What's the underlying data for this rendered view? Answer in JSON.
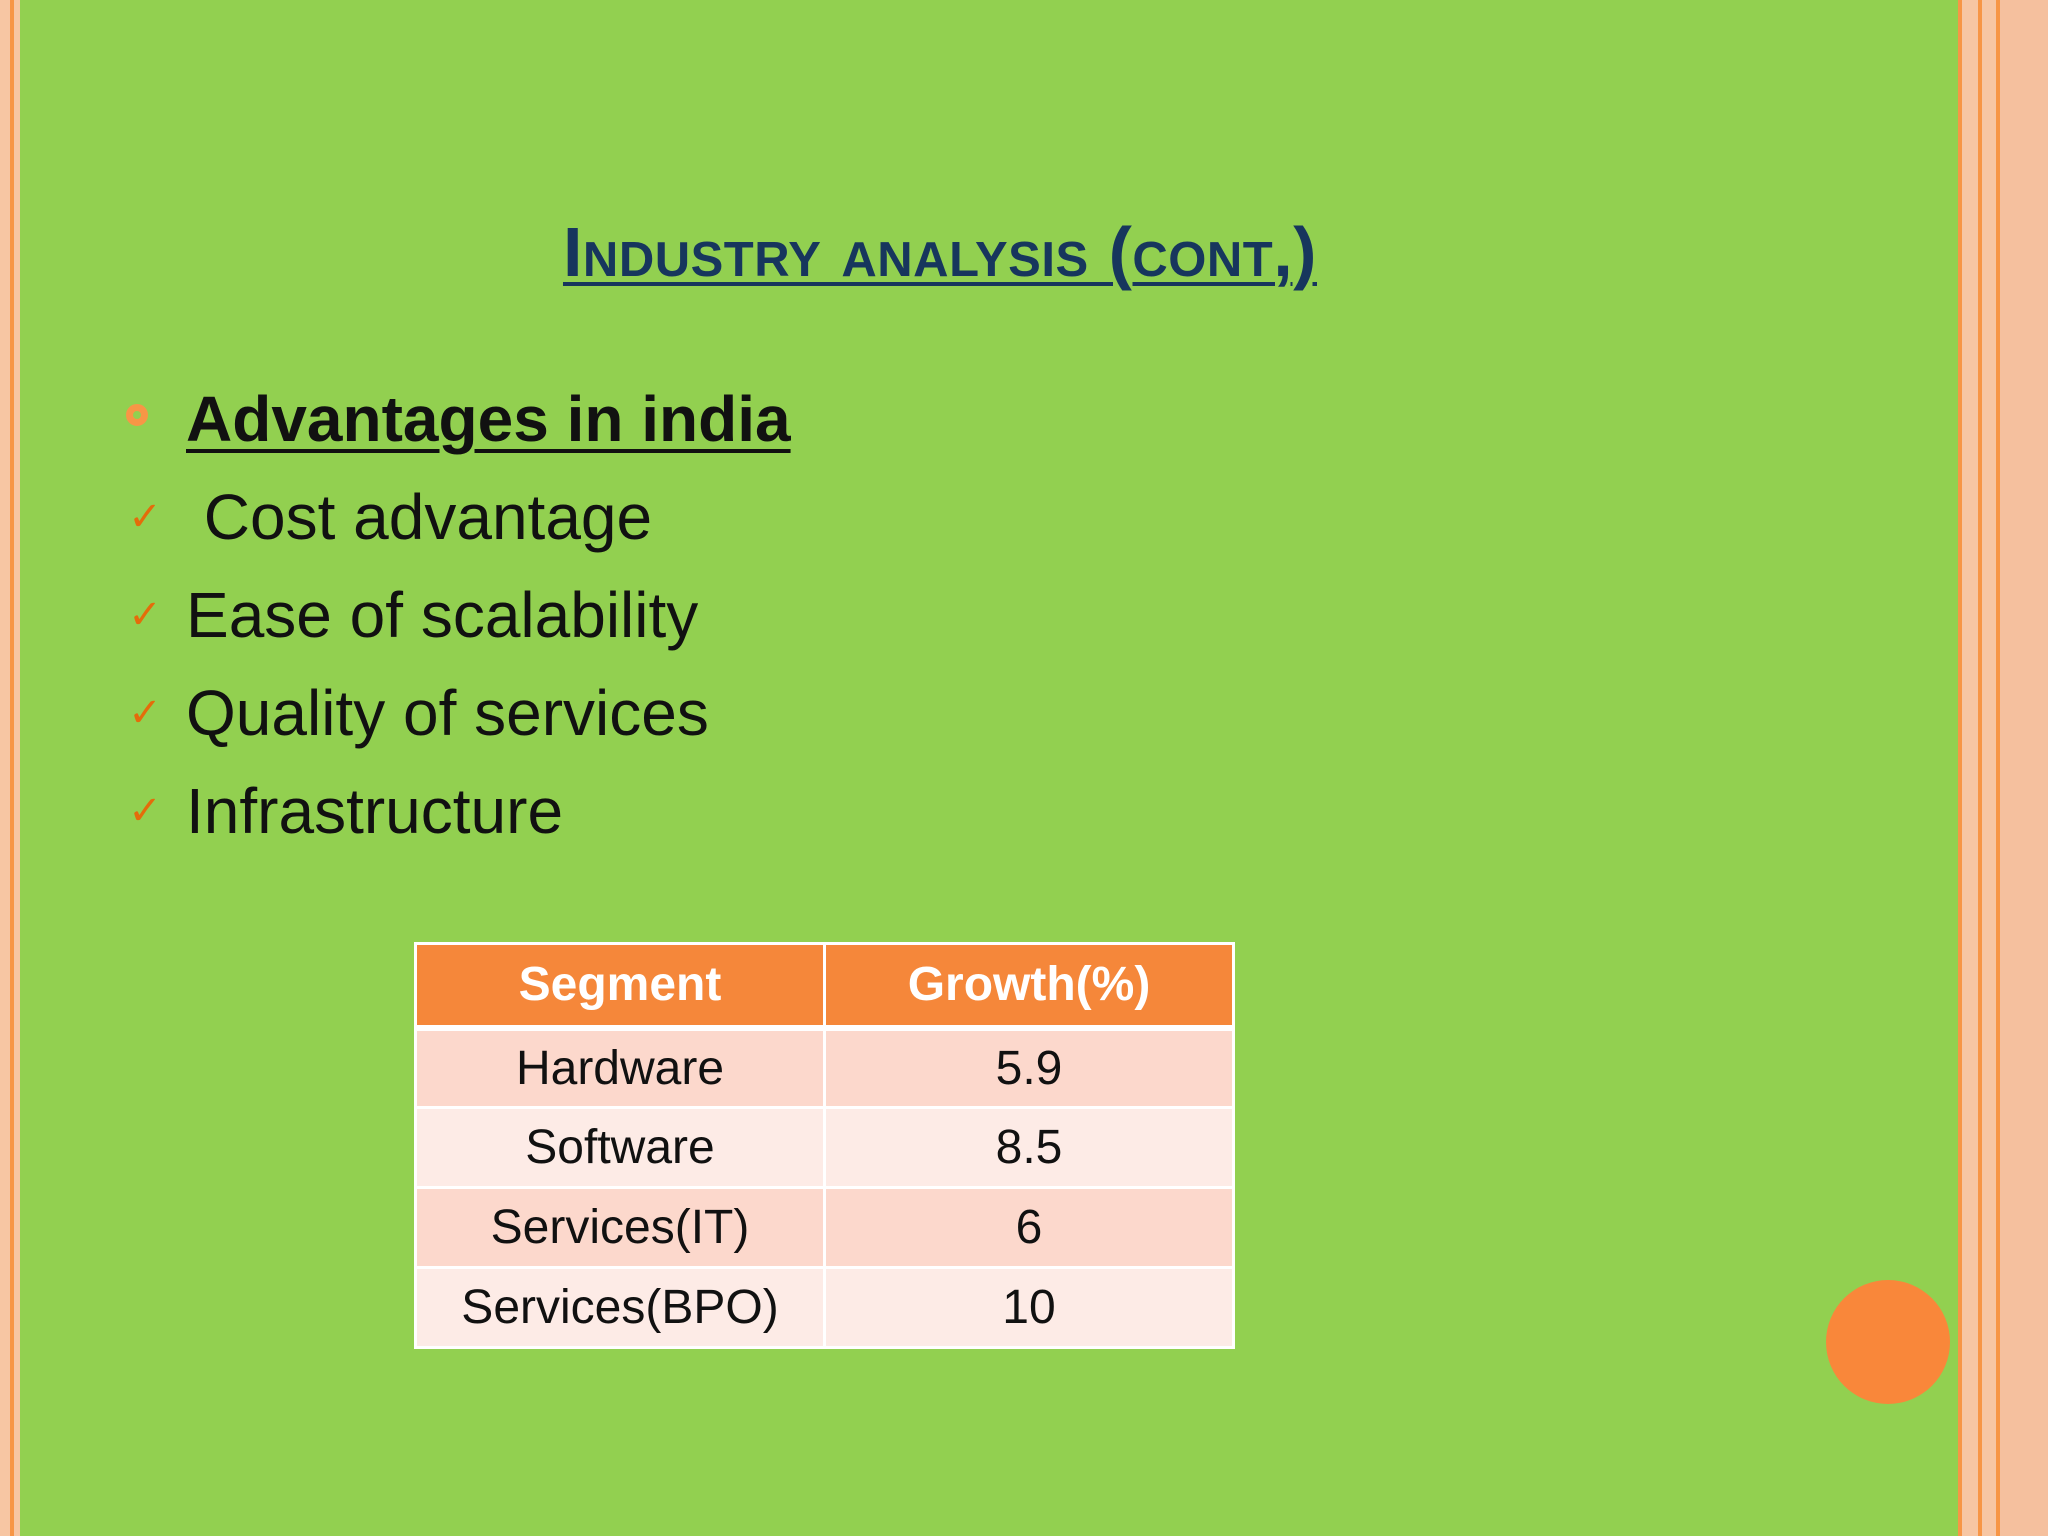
{
  "slide": {
    "title": "Industry analysis (cont,)",
    "heading": "Advantages in india",
    "points": [
      " Cost advantage",
      "Ease of scalability",
      "Quality of services",
      "Infrastructure"
    ]
  },
  "table": {
    "headers": [
      "Segment",
      "Growth(%)"
    ],
    "rows": [
      {
        "segment": "Hardware",
        "growth": "5.9"
      },
      {
        "segment": "Software",
        "growth": "8.5"
      },
      {
        "segment": "Services(IT)",
        "growth": "6"
      },
      {
        "segment": "Services(BPO)",
        "growth": "10"
      }
    ]
  },
  "colors": {
    "background": "#92D050",
    "accent": "#F79646",
    "title": "#17365D",
    "header_fill": "#F5873A"
  },
  "icons": {
    "heading_bullet": "ring-bullet-icon",
    "point_bullet": "checkmark-icon",
    "decoration": "orange-circle"
  }
}
